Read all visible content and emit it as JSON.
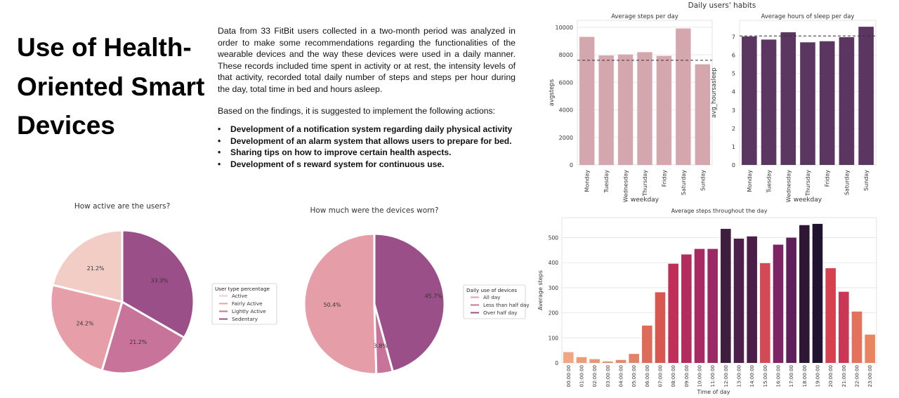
{
  "slide": {
    "title": "Use of Health-Oriented Smart Devices",
    "paragraph1": "Data from 33 FitBit users collected in a two-month period was analyzed in order to make some recommendations regarding the functionalities of the wearable devices and the way these devices were used in a daily manner. These records included time spent in activity or at rest, the intensity levels of that activity, recorded total daily number of steps and steps per hour during the day, total time in bed and hours asleep.",
    "paragraph2": "Based on the findings, it is suggested to implement the following actions:",
    "actions": [
      "Development of a notification system regarding daily physical activity",
      "Development of an alarm system that allows users to prepare for bed.",
      "Sharing tips on how to improve certain health aspects.",
      "Development of s reward system for continuous use."
    ]
  },
  "chart_data": [
    {
      "type": "pie",
      "title": "How active are the users?",
      "legend_title": "User type percentage",
      "legend_position": "right",
      "labels": [
        "Active",
        "Fairly Active",
        "Lightly Active",
        "Sedentary"
      ],
      "values": [
        21.2,
        24.2,
        21.2,
        33.3
      ],
      "value_labels": [
        "21.2%",
        "24.2%",
        "21.2%",
        "33.3%"
      ],
      "colors": [
        "#f2cdc6",
        "#e69fa9",
        "#c87399",
        "#9b4f88"
      ]
    },
    {
      "type": "pie",
      "title": "How much were the devices worn?",
      "legend_title": "Daily use of devices",
      "legend_position": "right",
      "labels": [
        "All day",
        "Less than half day",
        "Over half day"
      ],
      "values": [
        50.4,
        3.8,
        45.7
      ],
      "value_labels": [
        "50.4%",
        "3.8%",
        "45.7%"
      ],
      "colors": [
        "#e59ea8",
        "#c87399",
        "#9b4f88"
      ]
    },
    {
      "type": "bar",
      "suptitle": "Daily users' habits",
      "title": "Average steps per day",
      "xlabel": "weekday",
      "ylabel": "avgsteps",
      "categories": [
        "Monday",
        "Tuesday",
        "Wednesday",
        "Thursday",
        "Friday",
        "Saturday",
        "Sunday"
      ],
      "values": [
        9300,
        7950,
        8020,
        8190,
        7920,
        9910,
        7310
      ],
      "ylim": [
        0,
        10500
      ],
      "yticks": [
        0,
        2000,
        4000,
        6000,
        8000,
        10000
      ],
      "reference_line": 7600,
      "bar_color": "#d4a6ad",
      "grid": true
    },
    {
      "type": "bar",
      "title": "Average hours of sleep per day",
      "xlabel": "weekday",
      "ylabel": "avg_hoursasleep",
      "categories": [
        "Monday",
        "Tuesday",
        "Wednesday",
        "Thursday",
        "Friday",
        "Saturday",
        "Sunday"
      ],
      "values": [
        7.02,
        6.85,
        7.25,
        6.7,
        6.76,
        6.98,
        7.55
      ],
      "ylim": [
        0,
        7.9
      ],
      "yticks": [
        0,
        1,
        2,
        3,
        4,
        5,
        6,
        7
      ],
      "reference_line": 7.05,
      "bar_color": "#5a3661",
      "grid": true
    },
    {
      "type": "bar",
      "title": "Average steps throughout the day",
      "xlabel": "Time of day",
      "ylabel": "Average steps",
      "categories": [
        "00:00:00",
        "01:00:00",
        "02:00:00",
        "03:00:00",
        "04:00:00",
        "05:00:00",
        "06:00:00",
        "07:00:00",
        "08:00:00",
        "09:00:00",
        "10:00:00",
        "11:00:00",
        "12:00:00",
        "13:00:00",
        "14:00:00",
        "15:00:00",
        "16:00:00",
        "17:00:00",
        "18:00:00",
        "19:00:00",
        "20:00:00",
        "21:00:00",
        "22:00:00",
        "23:00:00"
      ],
      "values": [
        43,
        23,
        15,
        6,
        12,
        36,
        149,
        282,
        396,
        433,
        455,
        455,
        535,
        496,
        505,
        398,
        472,
        500,
        550,
        555,
        378,
        284,
        205,
        113
      ],
      "ylim": [
        0,
        580
      ],
      "yticks": [
        0,
        100,
        200,
        300,
        400,
        500
      ],
      "colors": [
        "#f0a680",
        "#eb9d7a",
        "#e89676",
        "#e5906f",
        "#e38a6b",
        "#e08467",
        "#dc6b59",
        "#d85750",
        "#c12f59",
        "#b22c5e",
        "#a72a62",
        "#9a2966",
        "#3f1d3f",
        "#4d1f4b",
        "#4a1e48",
        "#d24a55",
        "#7c2466",
        "#5f1f5a",
        "#2e1735",
        "#1f1330",
        "#d64150",
        "#c93755",
        "#e4715c",
        "#e8845f"
      ],
      "grid": true
    }
  ]
}
